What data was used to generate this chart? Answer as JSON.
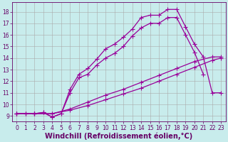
{
  "xlabel": "Windchill (Refroidissement éolien,°C)",
  "bg_color": "#c8ecec",
  "line_color": "#990099",
  "grid_color": "#aaaaaa",
  "xlim": [
    -0.5,
    23.5
  ],
  "ylim": [
    8.5,
    18.8
  ],
  "xticks": [
    0,
    1,
    2,
    3,
    4,
    5,
    6,
    7,
    8,
    9,
    10,
    11,
    12,
    13,
    14,
    15,
    16,
    17,
    18,
    19,
    20,
    21,
    22,
    23
  ],
  "yticks": [
    9,
    10,
    11,
    12,
    13,
    14,
    15,
    16,
    17,
    18
  ],
  "curves": [
    {
      "x": [
        0,
        2,
        4,
        6,
        8,
        10,
        12,
        14,
        16,
        18,
        20,
        22,
        23
      ],
      "y": [
        9.2,
        9.2,
        9.2,
        9.5,
        9.9,
        10.4,
        10.9,
        11.4,
        12.0,
        12.6,
        13.2,
        13.8,
        14.0
      ]
    },
    {
      "x": [
        0,
        2,
        4,
        6,
        8,
        10,
        12,
        14,
        16,
        18,
        20,
        22,
        23
      ],
      "y": [
        9.2,
        9.2,
        9.2,
        9.6,
        10.2,
        10.8,
        11.3,
        11.9,
        12.5,
        13.1,
        13.7,
        14.1,
        14.1
      ]
    },
    {
      "x": [
        0,
        1,
        2,
        3,
        4,
        5,
        6,
        7,
        8,
        9,
        10,
        11,
        12,
        13,
        14,
        15,
        16,
        17,
        18,
        19,
        20,
        21,
        22,
        23
      ],
      "y": [
        9.2,
        9.2,
        9.2,
        9.3,
        8.9,
        9.2,
        11.3,
        12.6,
        13.1,
        13.9,
        14.8,
        15.2,
        15.8,
        16.5,
        17.5,
        17.7,
        17.7,
        18.2,
        18.2,
        16.7,
        15.2,
        14.1,
        11.0,
        11.0
      ]
    },
    {
      "x": [
        0,
        1,
        2,
        3,
        4,
        5,
        6,
        7,
        8,
        9,
        10,
        11,
        12,
        13,
        14,
        15,
        16,
        17,
        18,
        19,
        20,
        21
      ],
      "y": [
        9.2,
        9.2,
        9.2,
        9.3,
        8.9,
        9.2,
        11.0,
        12.3,
        12.6,
        13.4,
        14.0,
        14.4,
        15.0,
        15.9,
        16.6,
        17.0,
        17.0,
        17.5,
        17.5,
        16.0,
        14.5,
        12.6
      ]
    }
  ],
  "marker": "+",
  "markersize": 4,
  "linewidth": 0.9,
  "font_color": "#660066",
  "tick_fontsize": 5.5,
  "xlabel_fontsize": 7.0
}
